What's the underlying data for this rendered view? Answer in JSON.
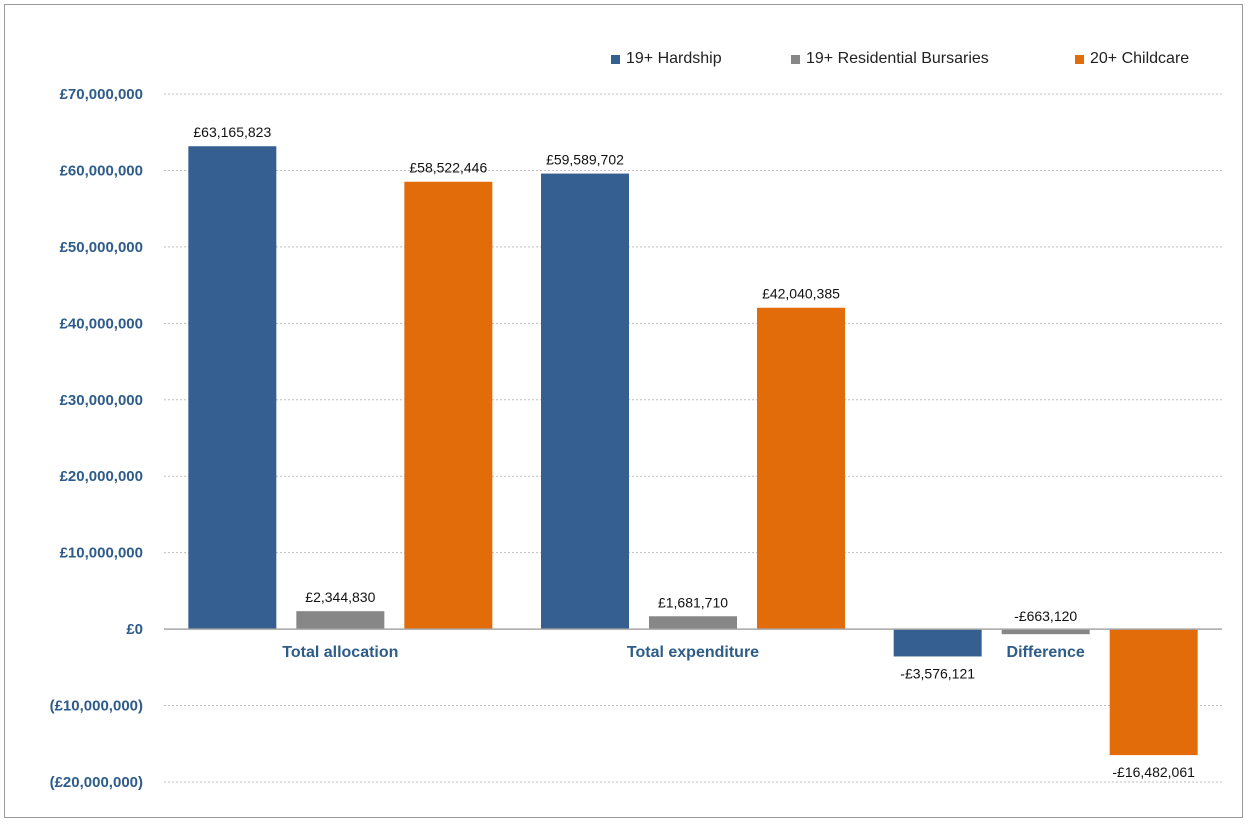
{
  "chart_data": {
    "type": "bar",
    "categories": [
      "Total allocation",
      "Total expenditure",
      "Difference"
    ],
    "series": [
      {
        "name": "19+ Hardship",
        "color": "#355E91",
        "values": [
          63165823,
          59589702,
          -3576121
        ],
        "labels": [
          "£63,165,823",
          "£59,589,702",
          "-£3,576,121"
        ]
      },
      {
        "name": "19+ Residential Bursaries",
        "color": "#878787",
        "values": [
          2344830,
          1681710,
          -663120
        ],
        "labels": [
          "£2,344,830",
          "£1,681,710",
          "-£663,120"
        ]
      },
      {
        "name": "20+ Childcare",
        "color": "#E36C0A",
        "values": [
          58522446,
          42040385,
          -16482061
        ],
        "labels": [
          "£58,522,446",
          "£42,040,385",
          "-£16,482,061"
        ]
      }
    ],
    "ylim": [
      -20000000,
      70000000
    ],
    "yticks": [
      70000000,
      60000000,
      50000000,
      40000000,
      30000000,
      20000000,
      10000000,
      0,
      -10000000,
      -20000000
    ],
    "ytick_labels": [
      "£70,000,000",
      "£60,000,000",
      "£50,000,000",
      "£40,000,000",
      "£30,000,000",
      "£20,000,000",
      "£10,000,000",
      "£0",
      "(£10,000,000)",
      "(£20,000,000)"
    ],
    "grid": true,
    "legend_position": "top-right",
    "axis_label_color": "#2E5C8A"
  }
}
